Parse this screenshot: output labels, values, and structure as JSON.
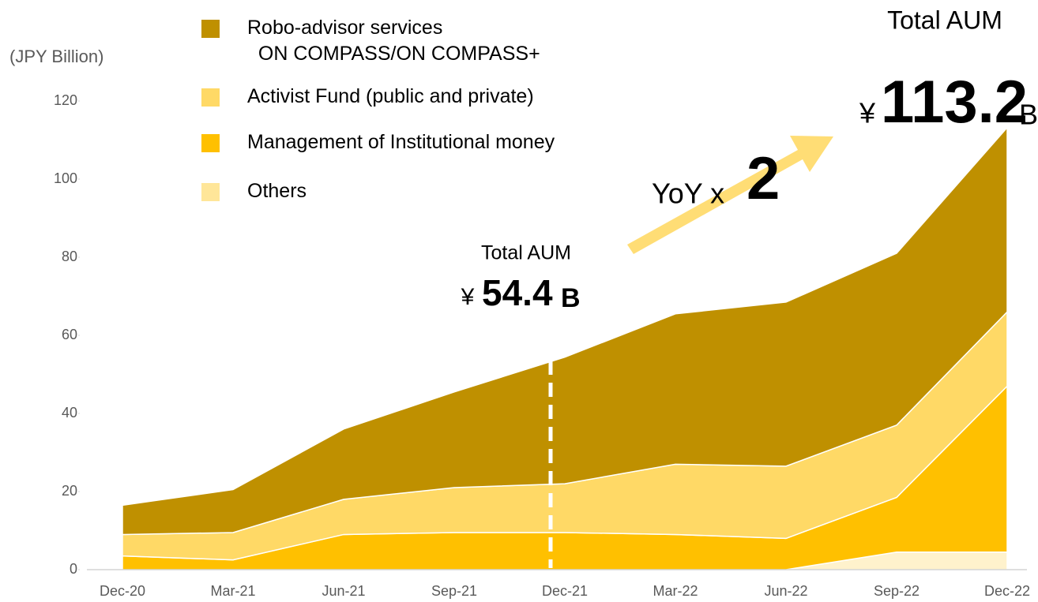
{
  "chart_data": {
    "type": "stacked_area",
    "y_label": "(JPY Billion)",
    "categories": [
      "Dec-20",
      "Mar-21",
      "Jun-21",
      "Sep-21",
      "Dec-21",
      "Mar-22",
      "Jun-22",
      "Sep-22",
      "Dec-22"
    ],
    "series": [
      {
        "name": "Robo-advisor services\n  ON COMPASS/ON COMPASS+",
        "color": "#bf9000",
        "values": [
          7.5,
          11,
          18,
          24.5,
          32.4,
          38.5,
          42,
          44,
          47.2
        ]
      },
      {
        "name": "Activist Fund (public and private)",
        "color": "#ffd966",
        "values": [
          5.5,
          7,
          9,
          11.5,
          12.5,
          18,
          18.5,
          18.5,
          19
        ]
      },
      {
        "name": "Management of Institutional money",
        "color": "#ffc000",
        "values": [
          3.5,
          2.5,
          9,
          9.5,
          9.5,
          9,
          8,
          14,
          42.5
        ]
      },
      {
        "name": "Others",
        "color": "#fff2cc",
        "values": [
          0,
          0,
          0,
          0,
          0,
          0,
          0,
          4.5,
          4.5
        ]
      }
    ],
    "ylim": [
      0,
      120
    ],
    "yticks": [
      0,
      20,
      40,
      60,
      80,
      100,
      120
    ],
    "annotations": {
      "mid": {
        "label": "Total AUM",
        "currency": "¥",
        "value": 54.4,
        "unit": "B"
      },
      "growth": {
        "label": "YoY x",
        "value": 2
      },
      "end": {
        "label": "Total AUM",
        "currency": "¥",
        "value": 113.2,
        "unit": "B"
      }
    }
  }
}
